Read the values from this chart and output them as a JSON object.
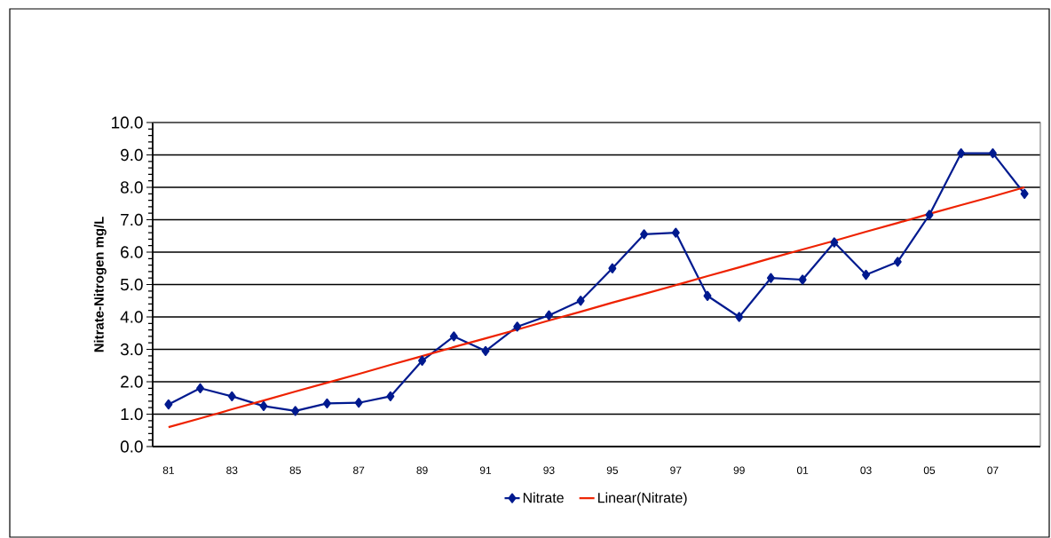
{
  "chart_data": {
    "type": "line",
    "ylabel": "Nitrate-Nitrogen mg/L",
    "categories": [
      "81",
      null,
      "83",
      null,
      "85",
      null,
      "87",
      null,
      "89",
      null,
      "91",
      null,
      "93",
      null,
      "95",
      null,
      "97",
      null,
      "99",
      null,
      "01",
      null,
      "03",
      null,
      "05",
      null,
      "07",
      null
    ],
    "series": [
      {
        "name": "Nitrate",
        "color": "#001a8f",
        "marker": "diamond",
        "values": [
          1.3,
          1.8,
          1.55,
          1.25,
          1.1,
          1.33,
          1.35,
          1.55,
          2.65,
          3.4,
          2.95,
          3.7,
          4.05,
          4.5,
          5.5,
          6.55,
          6.6,
          4.65,
          4.0,
          5.2,
          5.15,
          6.3,
          5.3,
          5.7,
          7.15,
          9.05,
          9.05,
          7.8
        ]
      },
      {
        "name": "Linear(Nitrate)",
        "color": "#ee2200",
        "marker": "none",
        "values": [
          0.6,
          0.87,
          1.15,
          1.42,
          1.7,
          1.97,
          2.24,
          2.52,
          2.79,
          3.07,
          3.34,
          3.61,
          3.89,
          4.16,
          4.44,
          4.71,
          4.98,
          5.26,
          5.53,
          5.81,
          6.08,
          6.35,
          6.63,
          6.9,
          7.18,
          7.45,
          7.72,
          8.0
        ]
      }
    ],
    "ylim": [
      0,
      10
    ],
    "yticks": [
      {
        "value": 0,
        "label": "0.0"
      },
      {
        "value": 1,
        "label": "1.0"
      },
      {
        "value": 2,
        "label": "2.0"
      },
      {
        "value": 3,
        "label": "3.0"
      },
      {
        "value": 4,
        "label": "4.0"
      },
      {
        "value": 5,
        "label": "5.0"
      },
      {
        "value": 6,
        "label": "6.0"
      },
      {
        "value": 7,
        "label": "7.0"
      },
      {
        "value": 8,
        "label": "8.0"
      },
      {
        "value": 9,
        "label": "9.0"
      },
      {
        "value": 10,
        "label": "10.0"
      }
    ],
    "grid": "y",
    "legend": "bottom",
    "line_style": "solid"
  }
}
